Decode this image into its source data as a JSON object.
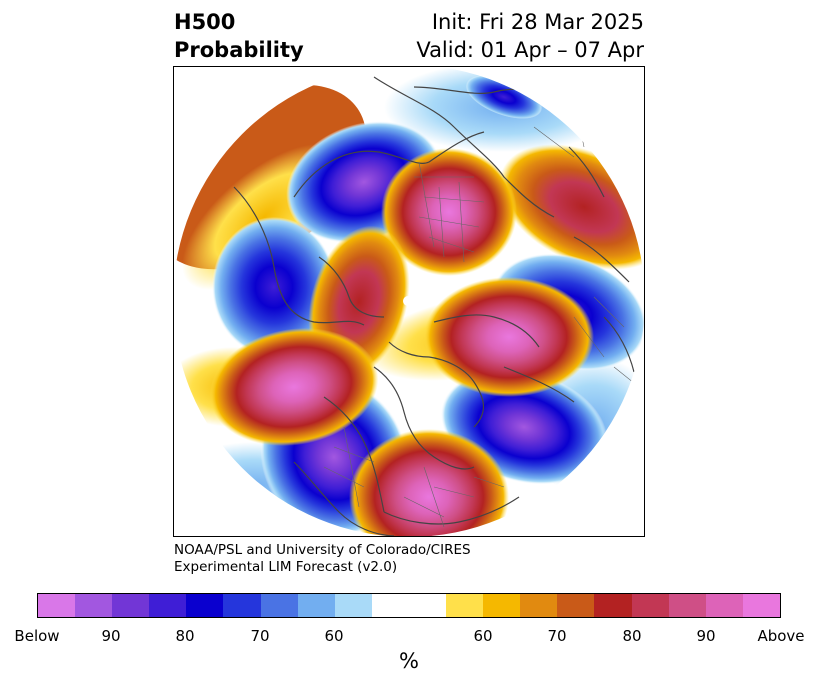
{
  "title": {
    "left_line1": "H500",
    "left_line2": "Probability",
    "right_line1": "Init: Fri 28 Mar 2025",
    "right_line2": "Valid: 01 Apr – 07 Apr"
  },
  "credit": {
    "line1": "NOAA/PSL and University of Colorado/CIRES",
    "line2": "Experimental LIM Forecast (v2.0)"
  },
  "colorbar": {
    "colors": [
      "#d977e8",
      "#a257e0",
      "#7236d6",
      "#3f1ed6",
      "#0a00cf",
      "#2536dc",
      "#4a73e4",
      "#72aef0",
      "#a9daf8",
      "#ffffff",
      "#ffe04a",
      "#f5b800",
      "#e18a10",
      "#c95a18",
      "#b32222",
      "#c23754",
      "#cf4f86",
      "#dd63b8",
      "#e977de"
    ],
    "ticks": [
      "Below",
      "90",
      "80",
      "70",
      "60",
      "60",
      "70",
      "80",
      "90",
      "Above"
    ],
    "unit": "%"
  }
}
